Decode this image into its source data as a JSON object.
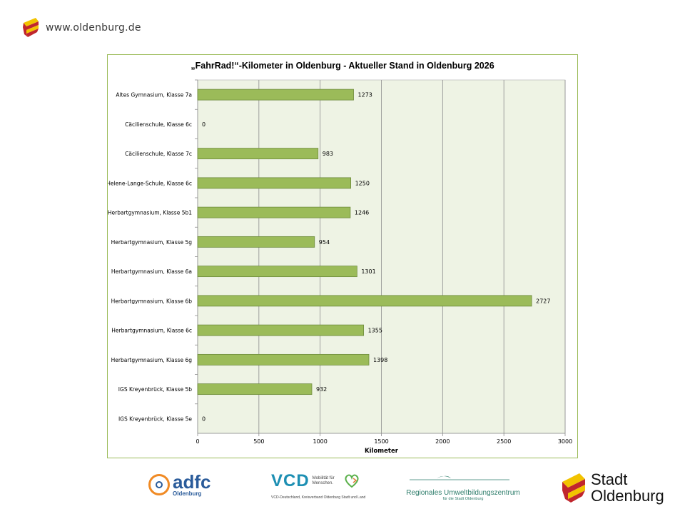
{
  "header": {
    "url": "www.oldenburg.de"
  },
  "chart_data": {
    "type": "bar",
    "orientation": "horizontal",
    "title": "„FahrRad!“-Kilometer in Oldenburg - Aktueller Stand in Oldenburg 2026",
    "xlabel": "Kilometer",
    "ylabel": "",
    "xlim": [
      0,
      3000
    ],
    "xticks": [
      0,
      500,
      1000,
      1500,
      2000,
      2500,
      3000
    ],
    "grid": true,
    "categories": [
      "Altes Gymnasium, Klasse 7a",
      "Cäcilienschule, Klasse 6c",
      "Cäcilienschule, Klasse 7c",
      "Helene-Lange-Schule, Klasse 6c",
      "Herbartgymnasium, Klasse 5b1",
      "Herbartgymnasium, Klasse 5g",
      "Herbartgymnasium, Klasse 6a",
      "Herbartgymnasium, Klasse 6b",
      "Herbartgymnasium, Klasse 6c",
      "Herbartgymnasium, Klasse 6g",
      "IGS Kreyenbrück, Klasse 5b",
      "IGS Kreyenbrück, Klasse 5e"
    ],
    "values": [
      1273,
      0,
      983,
      1250,
      1246,
      954,
      1301,
      2727,
      1355,
      1398,
      932,
      0
    ],
    "bar_color": "#9bbb59",
    "bar_border": "#6e8b3d",
    "plot_bg": "#eef3e4"
  },
  "footer": {
    "adfc": {
      "name": "adfc",
      "sub": "Oldenburg"
    },
    "vcd": {
      "name": "VCD",
      "claim": "Mobilität für Menschen.",
      "sub": "VCD-Deutschland, Kreisverband Oldenburg Stadt und Land"
    },
    "ruz": {
      "name": "Regionales Umweltbildungszentrum",
      "sub": "für die Stadt Oldenburg"
    },
    "stadt": {
      "line1": "Stadt",
      "line2": "Oldenburg"
    }
  }
}
